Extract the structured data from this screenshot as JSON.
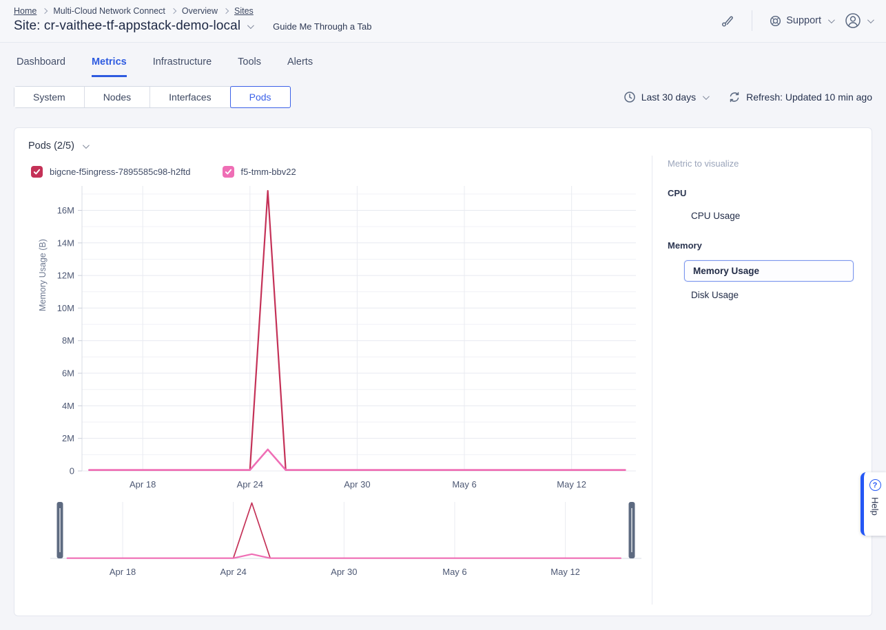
{
  "topbar": {
    "breadcrumb": [
      "Home",
      "Multi-Cloud Network Connect",
      "Overview",
      "Sites"
    ],
    "title": "Site: cr-vaithee-tf-appstack-demo-local",
    "guide_label": "Guide Me Through a Tab",
    "support_label": "Support"
  },
  "tabs": {
    "items": [
      "Dashboard",
      "Metrics",
      "Infrastructure",
      "Tools",
      "Alerts"
    ],
    "active": "Metrics"
  },
  "subtabs": {
    "items": [
      "System",
      "Nodes",
      "Interfaces",
      "Pods"
    ],
    "active": "Pods"
  },
  "controls": {
    "time_range": "Last 30 days",
    "refresh": "Refresh: Updated 10 min ago"
  },
  "panel": {
    "title": "Pods (2/5)"
  },
  "metric_panel": {
    "title": "Metric to visualize",
    "groups": [
      {
        "label": "CPU",
        "items": [
          {
            "label": "CPU Usage",
            "selected": false
          }
        ]
      },
      {
        "label": "Memory",
        "items": [
          {
            "label": "Memory Usage",
            "selected": true
          },
          {
            "label": "Disk Usage",
            "selected": false
          }
        ]
      }
    ]
  },
  "help": {
    "label": "Help",
    "icon": "?"
  },
  "colors": {
    "accent": "#2e5be0",
    "series_red": "#c43157",
    "series_pink": "#ef6eb5",
    "brush_handle": "#5d6a80"
  },
  "chart_data": {
    "type": "line",
    "title": "Pods (2/5)",
    "ylabel": "Memory Usage (B)",
    "x_unit": "days since Apr 15",
    "xlim": [
      -0.4,
      30.6
    ],
    "ylim": [
      0,
      17500000
    ],
    "grid_step_y": 1000000,
    "x_ticks": [
      {
        "x": 3,
        "label": "Apr 18"
      },
      {
        "x": 9,
        "label": "Apr 24"
      },
      {
        "x": 15,
        "label": "Apr 30"
      },
      {
        "x": 21,
        "label": "May 6"
      },
      {
        "x": 27,
        "label": "May 12"
      }
    ],
    "y_ticks": [
      {
        "v": 0,
        "label": "0"
      },
      {
        "v": 2000000,
        "label": "2M"
      },
      {
        "v": 4000000,
        "label": "4M"
      },
      {
        "v": 6000000,
        "label": "6M"
      },
      {
        "v": 8000000,
        "label": "8M"
      },
      {
        "v": 10000000,
        "label": "10M"
      },
      {
        "v": 12000000,
        "label": "12M"
      },
      {
        "v": 14000000,
        "label": "14M"
      },
      {
        "v": 16000000,
        "label": "16M"
      }
    ],
    "series": [
      {
        "name": "bigcne-f5ingress-7895585c98-h2ftd",
        "color": "#c43157",
        "checked": true,
        "points": [
          [
            0,
            60000
          ],
          [
            9,
            60000
          ],
          [
            10,
            17200000
          ],
          [
            11,
            60000
          ],
          [
            30,
            60000
          ]
        ]
      },
      {
        "name": "f5-tmm-bbv22",
        "color": "#ef6eb5",
        "checked": true,
        "points": [
          [
            0,
            60000
          ],
          [
            9,
            60000
          ],
          [
            10,
            1320000
          ],
          [
            11,
            60000
          ],
          [
            30,
            60000
          ]
        ]
      }
    ],
    "legend_position": "top",
    "grid": true,
    "brush": {
      "visible": true,
      "selection": "full range",
      "x_ticks_same": true
    }
  }
}
